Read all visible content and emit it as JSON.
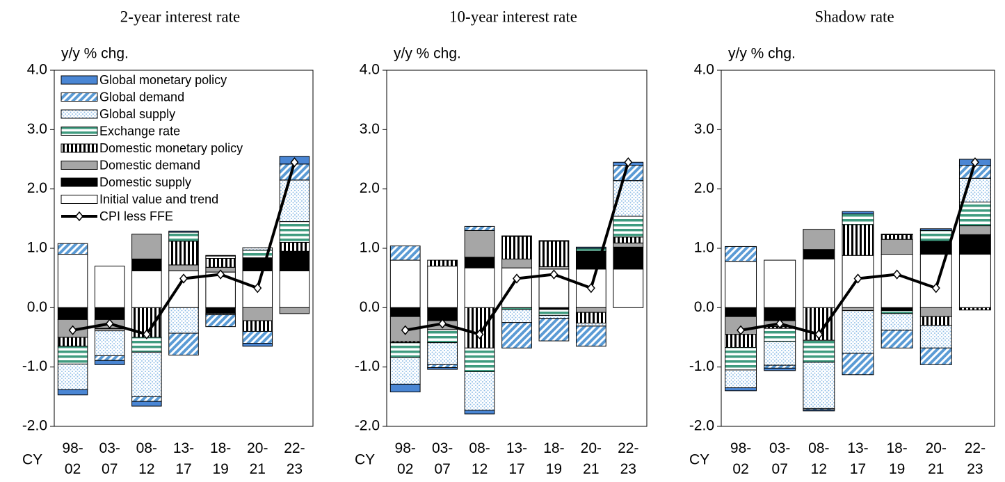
{
  "chart_data": [
    {
      "type": "bar",
      "stacked": true,
      "title": "2-year interest rate",
      "y_label": "y/y % chg.",
      "x_label": "CY",
      "legend": true,
      "categories": [
        "98-02",
        "03-07",
        "08-12",
        "13-17",
        "18-19",
        "20-21",
        "22-23"
      ],
      "ylim": [
        -2,
        4
      ],
      "yticks": [
        {
          "value": 4,
          "label": "4.0"
        },
        {
          "value": 3,
          "label": "3.0"
        },
        {
          "value": 2,
          "label": "2.0"
        },
        {
          "value": 1,
          "label": "1.0"
        },
        {
          "value": 0,
          "label": "0.0"
        },
        {
          "value": -1,
          "label": "-1.0"
        },
        {
          "value": -2,
          "label": "-2.0"
        }
      ],
      "series": [
        {
          "name": "Global monetary policy",
          "color": "#4a86d4",
          "pattern": "solid",
          "values": [
            -0.09,
            -0.07,
            -0.08,
            0.02,
            0.01,
            -0.05,
            0.13
          ]
        },
        {
          "name": "Global demand",
          "color": "#5b9bd5",
          "pattern": "diagonal",
          "values": [
            0.18,
            -0.08,
            -0.08,
            -0.37,
            -0.2,
            -0.2,
            0.27
          ]
        },
        {
          "name": "Global supply",
          "color": "#8fbde6",
          "pattern": "dots",
          "values": [
            -0.43,
            -0.42,
            -0.75,
            -0.43,
            -0.02,
            0.04,
            0.7
          ]
        },
        {
          "name": "Exchange rate",
          "color": "#3f9b7f",
          "pattern": "hstripe",
          "values": [
            -0.3,
            -0.03,
            -0.25,
            0.15,
            0.04,
            0.13,
            0.35
          ]
        },
        {
          "name": "Domestic monetary policy",
          "color": "#000000",
          "pattern": "vstripe",
          "values": [
            -0.15,
            -0.01,
            -0.5,
            0.4,
            0.15,
            -0.18,
            0.15
          ]
        },
        {
          "name": "Domestic demand",
          "color": "#a6a6a6",
          "pattern": "solid",
          "values": [
            -0.3,
            -0.15,
            0.42,
            0.1,
            0.08,
            -0.22,
            -0.1
          ]
        },
        {
          "name": "Domestic supply",
          "color": "#000000",
          "pattern": "solid",
          "values": [
            -0.2,
            -0.2,
            0.2,
            0,
            -0.1,
            0.22,
            0.33
          ]
        },
        {
          "name": "Initial value and trend",
          "color": "#ffffff",
          "pattern": "solid",
          "values": [
            0.9,
            0.7,
            0.62,
            0.62,
            0.6,
            0.62,
            0.62
          ]
        }
      ],
      "line": {
        "name": "CPI less FFE",
        "color": "#000000",
        "values": [
          -0.38,
          -0.27,
          -0.45,
          0.49,
          0.56,
          0.33,
          2.45
        ]
      }
    },
    {
      "type": "bar",
      "stacked": true,
      "title": "10-year interest rate",
      "y_label": "y/y % chg.",
      "x_label": "CY",
      "legend": false,
      "categories": [
        "98-02",
        "03-07",
        "08-12",
        "13-17",
        "18-19",
        "20-21",
        "22-23"
      ],
      "ylim": [
        -2,
        4
      ],
      "yticks": [
        {
          "value": 4,
          "label": "4.0"
        },
        {
          "value": 3,
          "label": "3.0"
        },
        {
          "value": 2,
          "label": "2.0"
        },
        {
          "value": 1,
          "label": "1.0"
        },
        {
          "value": 0,
          "label": "0.0"
        },
        {
          "value": -1,
          "label": "-1.0"
        },
        {
          "value": -2,
          "label": "-2.0"
        }
      ],
      "series": [
        {
          "color": "#4a86d4",
          "pattern": "solid",
          "values": [
            -0.13,
            -0.03,
            -0.06,
            0.01,
            0.01,
            0.02,
            0.05
          ]
        },
        {
          "color": "#5b9bd5",
          "pattern": "diagonal",
          "values": [
            0.24,
            -0.05,
            0.07,
            -0.43,
            -0.38,
            -0.34,
            0.26
          ]
        },
        {
          "color": "#8fbde6",
          "pattern": "dots",
          "values": [
            -0.45,
            -0.37,
            -0.65,
            -0.22,
            -0.05,
            -0.05,
            0.6
          ]
        },
        {
          "color": "#3f9b7f",
          "pattern": "hstripe",
          "values": [
            -0.25,
            -0.22,
            -0.4,
            -0.03,
            -0.1,
            0.05,
            0.35
          ]
        },
        {
          "color": "#000000",
          "pattern": "vstripe",
          "values": [
            -0.02,
            0.1,
            -0.68,
            0.38,
            0.43,
            -0.18,
            0.1
          ]
        },
        {
          "color": "#a6a6a6",
          "pattern": "solid",
          "values": [
            -0.42,
            -0.15,
            0.45,
            0.15,
            0.04,
            -0.08,
            0.07
          ]
        },
        {
          "color": "#000000",
          "pattern": "solid",
          "values": [
            -0.15,
            -0.22,
            0.18,
            0,
            -0.03,
            0.3,
            0.37
          ]
        },
        {
          "color": "#ffffff",
          "pattern": "solid",
          "values": [
            0.8,
            0.7,
            0.67,
            0.67,
            0.65,
            0.65,
            0.65
          ]
        }
      ],
      "line": {
        "color": "#000000",
        "values": [
          -0.38,
          -0.27,
          -0.45,
          0.49,
          0.56,
          0.33,
          2.45
        ]
      }
    },
    {
      "type": "bar",
      "stacked": true,
      "title": "Shadow rate",
      "y_label": "y/y % chg.",
      "x_label": "CY",
      "legend": false,
      "categories": [
        "98-02",
        "03-07",
        "08-12",
        "13-17",
        "18-19",
        "20-21",
        "22-23"
      ],
      "ylim": [
        -2,
        4
      ],
      "yticks": [
        {
          "value": 4,
          "label": "4.0"
        },
        {
          "value": 3,
          "label": "3.0"
        },
        {
          "value": 2,
          "label": "2.0"
        },
        {
          "value": 1,
          "label": "1.0"
        },
        {
          "value": 0,
          "label": "0.0"
        },
        {
          "value": -1,
          "label": "-1.0"
        },
        {
          "value": -2,
          "label": "-2.0"
        }
      ],
      "series": [
        {
          "color": "#4a86d4",
          "pattern": "solid",
          "values": [
            -0.05,
            -0.04,
            -0.02,
            0.04,
            0.01,
            0.03,
            0.1
          ]
        },
        {
          "color": "#5b9bd5",
          "pattern": "diagonal",
          "values": [
            0.25,
            -0.05,
            -0.02,
            -0.36,
            -0.3,
            -0.28,
            0.22
          ]
        },
        {
          "color": "#8fbde6",
          "pattern": "dots",
          "values": [
            -0.3,
            -0.4,
            -0.78,
            -0.72,
            -0.28,
            -0.38,
            0.4
          ]
        },
        {
          "color": "#3f9b7f",
          "pattern": "hstripe",
          "values": [
            -0.38,
            -0.22,
            -0.37,
            0.18,
            -0.05,
            0.18,
            0.4
          ]
        },
        {
          "color": "#000000",
          "pattern": "vstripe",
          "values": [
            -0.22,
            -0.03,
            -0.55,
            0.52,
            0.08,
            -0.15,
            -0.04
          ]
        },
        {
          "color": "#a6a6a6",
          "pattern": "solid",
          "values": [
            -0.3,
            -0.1,
            0.34,
            -0.05,
            0.25,
            -0.15,
            0.15
          ]
        },
        {
          "color": "#000000",
          "pattern": "solid",
          "values": [
            -0.15,
            -0.22,
            0.16,
            0,
            -0.05,
            0.22,
            0.33
          ]
        },
        {
          "color": "#ffffff",
          "pattern": "solid",
          "values": [
            0.78,
            0.8,
            0.82,
            0.88,
            0.9,
            0.9,
            0.9
          ]
        }
      ],
      "line": {
        "color": "#000000",
        "values": [
          -0.38,
          -0.27,
          -0.45,
          0.49,
          0.56,
          0.33,
          2.45
        ]
      }
    }
  ]
}
